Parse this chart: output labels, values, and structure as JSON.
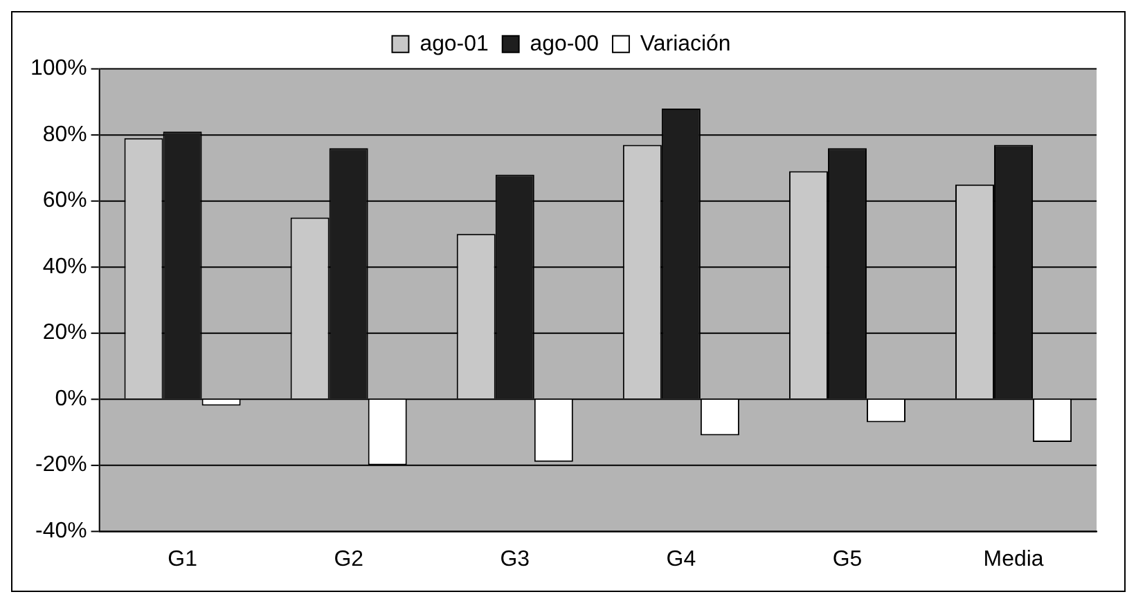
{
  "chart_data": {
    "type": "bar",
    "categories": [
      "G1",
      "G2",
      "G3",
      "G4",
      "G5",
      "Media"
    ],
    "series": [
      {
        "name": "ago-01",
        "color": "#c8c8c8",
        "values": [
          79,
          55,
          50,
          77,
          69,
          65
        ]
      },
      {
        "name": "ago-00",
        "color": "#1e1e1e",
        "values": [
          81,
          76,
          68,
          88,
          76,
          77
        ]
      },
      {
        "name": "Variación",
        "color": "#ffffff",
        "values": [
          -2,
          -20,
          -19,
          -11,
          -7,
          -13
        ]
      }
    ],
    "ylim": [
      -40,
      100
    ],
    "yticks": [
      {
        "value": -40,
        "label": "-40%"
      },
      {
        "value": -20,
        "label": "-20%"
      },
      {
        "value": 0,
        "label": "0%"
      },
      {
        "value": 20,
        "label": "20%"
      },
      {
        "value": 40,
        "label": "40%"
      },
      {
        "value": 60,
        "label": "60%"
      },
      {
        "value": 80,
        "label": "80%"
      },
      {
        "value": 100,
        "label": "100%"
      }
    ],
    "grid": "y",
    "legend": "top"
  }
}
